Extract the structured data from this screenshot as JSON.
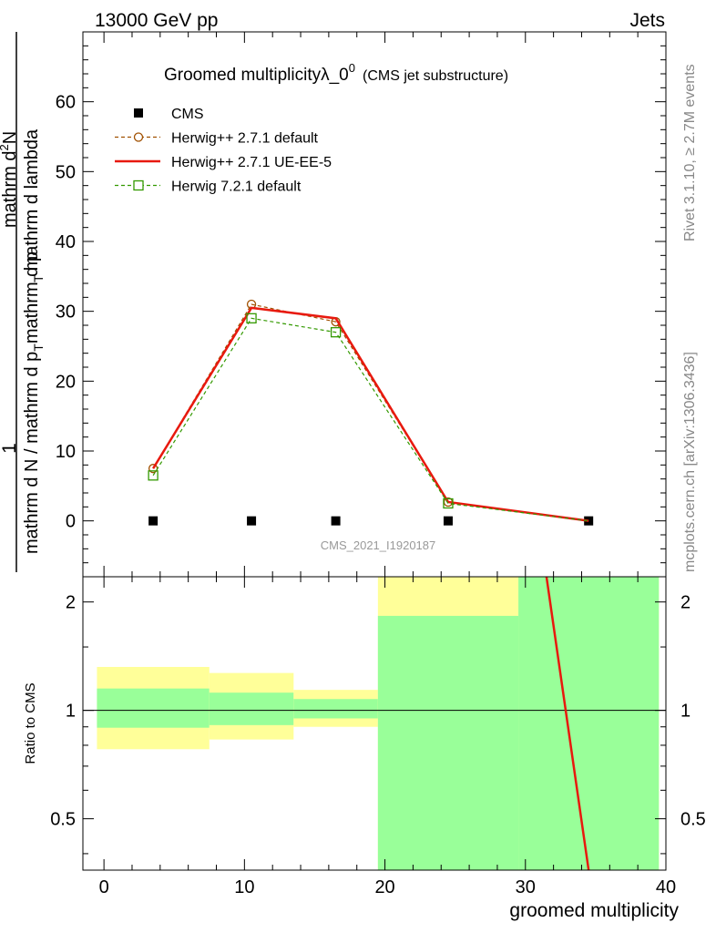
{
  "header": {
    "energy_label": "13000 GeV pp",
    "category_label": "Jets",
    "rivet_label": "Rivet 3.1.10, ≥ 2.7M events",
    "site_label": "mcplots.cern.ch [arXiv:1306.3436]",
    "analysis_id": "CMS_2021_I1920187"
  },
  "chart_data": [
    {
      "type": "line",
      "panel": "main",
      "title_main": "Groomed multiplicityλ_0",
      "title_sup": "0",
      "title_sub": "(CMS jet substructure)",
      "ylabel_num": "1",
      "ylabel_den": "mathrm d N / mathrm d p",
      "ylabel_den_sub": "T",
      "ylabel_den2": "mathrm d lambda",
      "ylabel_num2": "mathrm d",
      "ylabel_num2_sup": "2",
      "ylabel_num2_end": "N",
      "ylabel_mid": "mathrm d p",
      "ylabel_mid_sub": "T",
      "ylim": [
        -8,
        70
      ],
      "yticks": [
        0,
        10,
        20,
        30,
        40,
        50,
        60
      ],
      "ytick_labels": [
        "0",
        "10",
        "20",
        "30",
        "40",
        "50",
        "60"
      ],
      "series": [
        {
          "name": "CMS",
          "style": "data",
          "color": "#000000",
          "points": [
            [
              3.5,
              0
            ],
            [
              10.5,
              0
            ],
            [
              16.5,
              0
            ],
            [
              24.5,
              0
            ],
            [
              34.5,
              0
            ]
          ]
        },
        {
          "name": "Herwig++ 2.7.1 default",
          "style": "dashed-circle",
          "color": "#a05000",
          "points": [
            [
              3.5,
              7.5
            ],
            [
              10.5,
              31
            ],
            [
              16.5,
              28.5
            ],
            [
              24.5,
              2.7
            ],
            [
              34.5,
              0
            ]
          ]
        },
        {
          "name": "Herwig++ 2.7.1 UE-EE-5",
          "style": "solid",
          "color": "#e8190e",
          "points": [
            [
              3.5,
              7.5
            ],
            [
              10.5,
              30.5
            ],
            [
              16.5,
              29
            ],
            [
              24.5,
              2.7
            ],
            [
              34.5,
              0
            ]
          ]
        },
        {
          "name": "Herwig 7.2.1 default",
          "style": "dashed-square",
          "color": "#339900",
          "points": [
            [
              3.5,
              6.5
            ],
            [
              10.5,
              29
            ],
            [
              16.5,
              27
            ],
            [
              24.5,
              2.5
            ],
            [
              34.5,
              0
            ]
          ]
        }
      ]
    },
    {
      "type": "area",
      "panel": "ratio",
      "xlabel": "groomed multiplicity",
      "ylabel": "Ratio to CMS",
      "xlim": [
        -1.5,
        40
      ],
      "xticks": [
        0,
        10,
        20,
        30,
        40
      ],
      "xtick_labels": [
        "0",
        "10",
        "20",
        "30",
        "40"
      ],
      "ylim": [
        0.36,
        2.35
      ],
      "yscale": "log",
      "yticks": [
        0.5,
        1,
        2
      ],
      "ytick_labels": [
        "0.5",
        "1",
        "2"
      ],
      "bands": [
        {
          "x0": -0.5,
          "x1": 7.5,
          "yellow": [
            0.78,
            1.32
          ],
          "green": [
            0.895,
            1.15
          ]
        },
        {
          "x0": 7.5,
          "x1": 13.5,
          "yellow": [
            0.83,
            1.27
          ],
          "green": [
            0.91,
            1.12
          ]
        },
        {
          "x0": 13.5,
          "x1": 19.5,
          "yellow": [
            0.9,
            1.14
          ],
          "green": [
            0.95,
            1.075
          ]
        },
        {
          "x0": 19.5,
          "x1": 29.5,
          "yellow": [
            0.36,
            3.0
          ],
          "green": [
            0.36,
            1.83
          ]
        },
        {
          "x0": 29.5,
          "x1": 39.5,
          "yellow": [
            0.36,
            3.0
          ],
          "green": [
            0.36,
            3.0
          ]
        }
      ],
      "ratio_line": {
        "name": "Herwig++ 2.7.1 UE-EE-5",
        "color": "#e8190e",
        "points": [
          [
            31.5,
            2.35
          ],
          [
            34.5,
            0.36
          ]
        ]
      }
    }
  ]
}
